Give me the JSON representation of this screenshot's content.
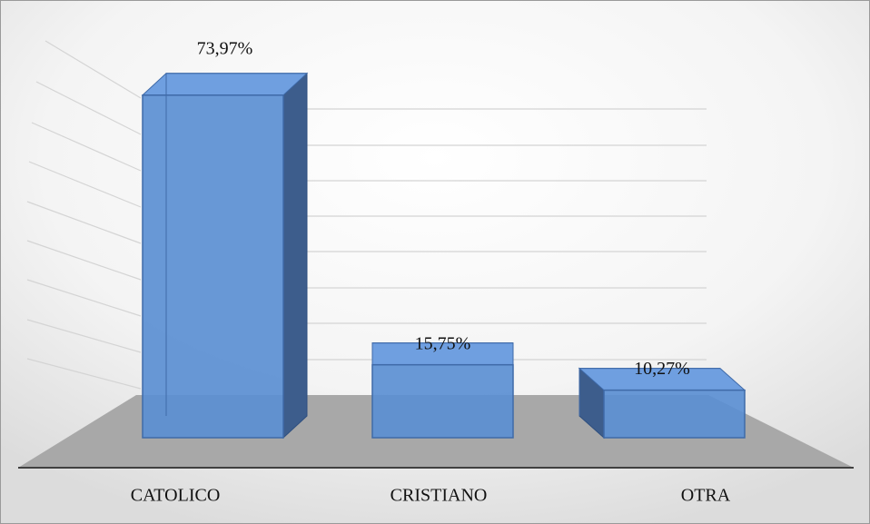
{
  "chart_data": {
    "type": "bar3d",
    "categories": [
      "CATOLICO",
      "CRISTIANO",
      "OTRA"
    ],
    "values": [
      73.97,
      15.75,
      10.27
    ],
    "value_labels": [
      "73,97%",
      "15,75%",
      "10,27%"
    ],
    "color": "#5b8fd3",
    "ylim": [
      0,
      80
    ]
  }
}
